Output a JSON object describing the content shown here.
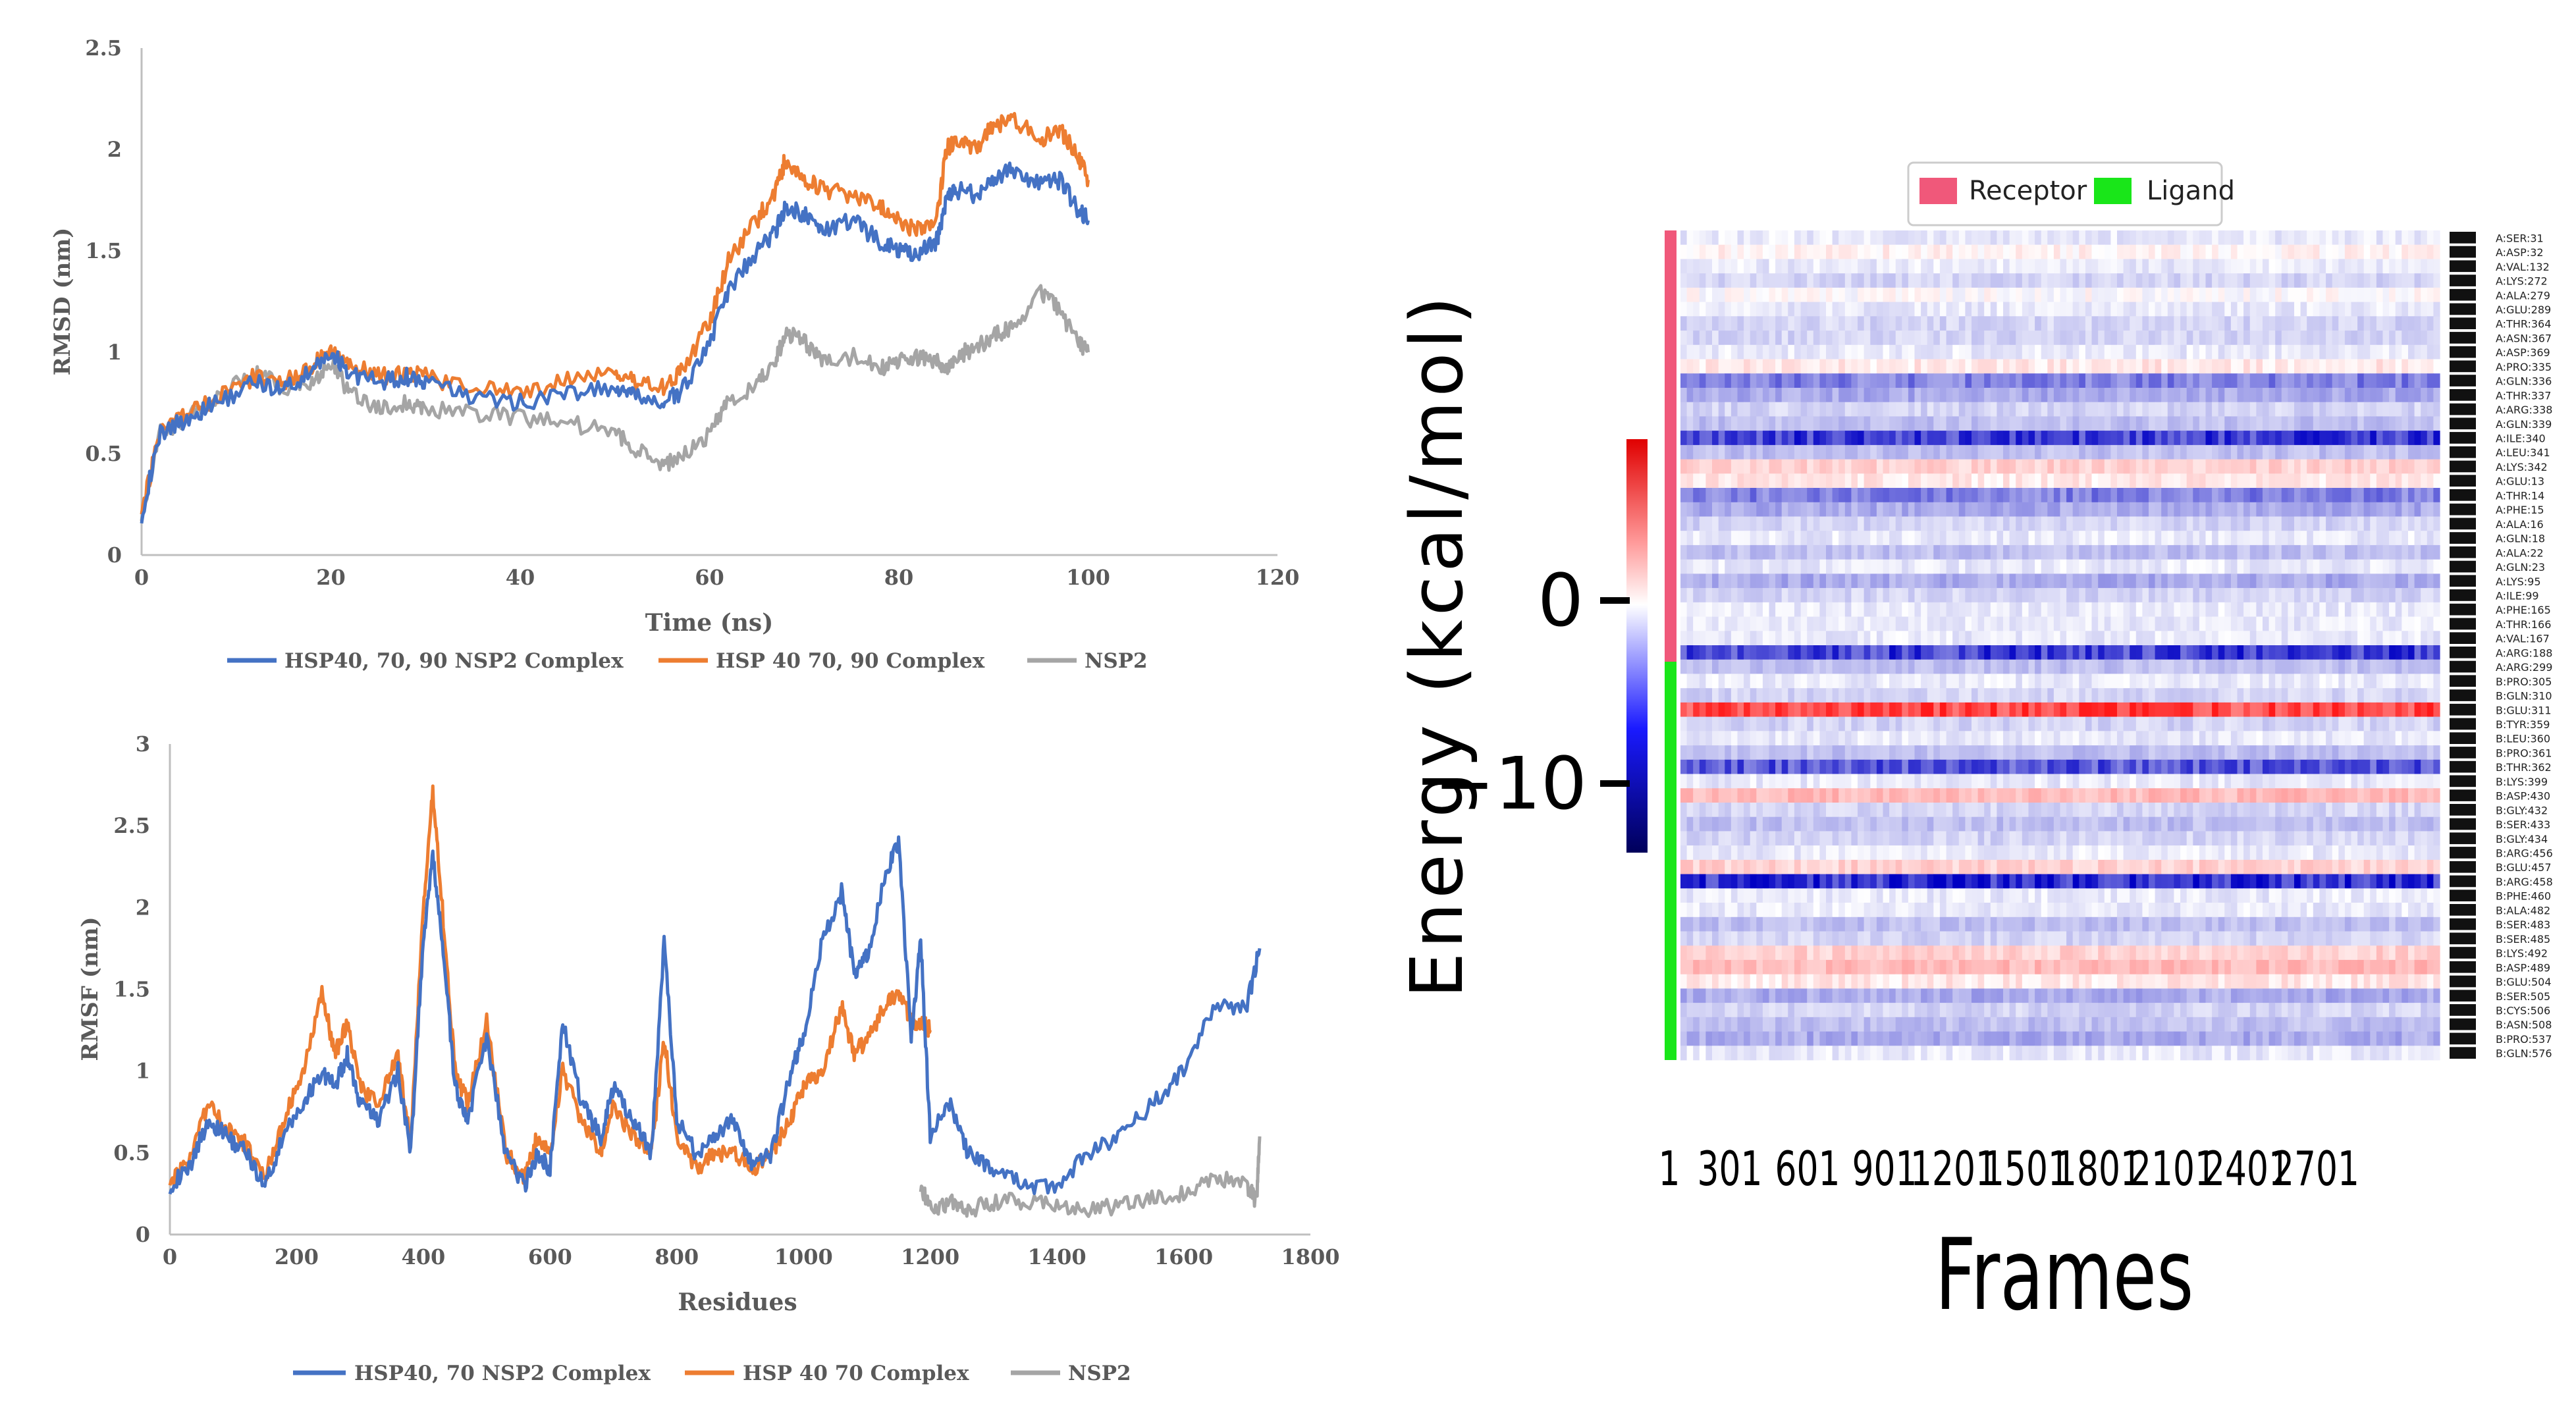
{
  "chart_data": [
    {
      "type": "line",
      "id": "rmsd",
      "title": "",
      "xlabel": "Time (ns)",
      "ylabel": "RMSD (nm)",
      "xlim": [
        0,
        120
      ],
      "ylim": [
        0,
        2.5
      ],
      "xticks": [
        "0",
        "20",
        "40",
        "60",
        "80",
        "100",
        "120"
      ],
      "yticks": [
        "0",
        "0.5",
        "1",
        "1.5",
        "2",
        "2.5"
      ],
      "series": [
        {
          "name": "HSP40, 70, 90 NSP2 Complex",
          "color": "#4472C4",
          "x": [
            0,
            2,
            5,
            8,
            12,
            15,
            18,
            20,
            22,
            25,
            28,
            30,
            35,
            40,
            45,
            50,
            52,
            55,
            57,
            60,
            62,
            65,
            67,
            68,
            70,
            72,
            75,
            78,
            80,
            82,
            84,
            85,
            86,
            88,
            90,
            92,
            95,
            97,
            99,
            100
          ],
          "y": [
            0.2,
            0.6,
            0.68,
            0.75,
            0.85,
            0.82,
            0.9,
            1.0,
            0.9,
            0.85,
            0.88,
            0.85,
            0.78,
            0.75,
            0.8,
            0.82,
            0.78,
            0.75,
            0.8,
            1.05,
            1.3,
            1.5,
            1.6,
            1.72,
            1.68,
            1.6,
            1.65,
            1.55,
            1.5,
            1.48,
            1.55,
            1.75,
            1.8,
            1.78,
            1.85,
            1.9,
            1.82,
            1.85,
            1.7,
            1.65
          ]
        },
        {
          "name": "HSP 40 70, 90 Complex",
          "color": "#ED7D31",
          "x": [
            0,
            2,
            5,
            8,
            12,
            15,
            18,
            20,
            22,
            25,
            28,
            30,
            35,
            40,
            45,
            50,
            52,
            55,
            57,
            60,
            62,
            65,
            67,
            68,
            70,
            72,
            75,
            78,
            80,
            82,
            84,
            85,
            86,
            88,
            90,
            92,
            95,
            97,
            99,
            100
          ],
          "y": [
            0.2,
            0.62,
            0.7,
            0.78,
            0.88,
            0.85,
            0.93,
            1.02,
            0.95,
            0.88,
            0.9,
            0.88,
            0.82,
            0.8,
            0.86,
            0.9,
            0.85,
            0.83,
            0.9,
            1.15,
            1.45,
            1.65,
            1.8,
            1.95,
            1.85,
            1.8,
            1.78,
            1.72,
            1.65,
            1.6,
            1.65,
            2.0,
            2.05,
            2.0,
            2.12,
            2.15,
            2.05,
            2.1,
            1.95,
            1.85
          ]
        },
        {
          "name": "NSP2",
          "color": "#A5A5A5",
          "x": [
            0,
            2,
            5,
            8,
            12,
            15,
            18,
            20,
            22,
            25,
            28,
            30,
            35,
            40,
            45,
            50,
            52,
            55,
            57,
            60,
            62,
            65,
            67,
            68,
            70,
            72,
            75,
            78,
            80,
            82,
            84,
            85,
            86,
            88,
            90,
            92,
            95,
            97,
            99,
            100
          ],
          "y": [
            0.2,
            0.6,
            0.68,
            0.78,
            0.9,
            0.82,
            0.85,
            0.95,
            0.8,
            0.72,
            0.75,
            0.72,
            0.7,
            0.68,
            0.65,
            0.6,
            0.52,
            0.45,
            0.48,
            0.6,
            0.75,
            0.85,
            0.95,
            1.1,
            1.05,
            0.95,
            0.98,
            0.92,
            0.95,
            0.98,
            0.95,
            0.92,
            0.98,
            1.02,
            1.08,
            1.12,
            1.3,
            1.2,
            1.05,
            1.0
          ]
        }
      ]
    },
    {
      "type": "line",
      "id": "rmsf",
      "title": "",
      "xlabel": "Residues",
      "ylabel": "RMSF (nm)",
      "xlim": [
        0,
        1800
      ],
      "ylim": [
        0,
        3
      ],
      "xticks": [
        "0",
        "200",
        "400",
        "600",
        "800",
        "1000",
        "1200",
        "1400",
        "1600",
        "1800"
      ],
      "yticks": [
        "0",
        "0.5",
        "1",
        "1.5",
        "2",
        "2.5",
        "3"
      ],
      "series": [
        {
          "name": "HSP40, 70 NSP2 Complex",
          "color": "#4472C4",
          "x": [
            0,
            30,
            60,
            90,
            120,
            150,
            180,
            210,
            240,
            260,
            280,
            300,
            330,
            360,
            380,
            400,
            415,
            430,
            450,
            470,
            500,
            530,
            560,
            580,
            600,
            620,
            650,
            680,
            700,
            730,
            760,
            780,
            800,
            830,
            860,
            890,
            920,
            950,
            980,
            1000,
            1030,
            1060,
            1080,
            1100,
            1130,
            1150,
            1170,
            1185,
            1200,
            1230,
            1260,
            1300,
            1350,
            1400,
            1450,
            1500,
            1550,
            1600,
            1650,
            1700,
            1720
          ],
          "y": [
            0.3,
            0.4,
            0.7,
            0.6,
            0.5,
            0.3,
            0.6,
            0.8,
            1.0,
            0.9,
            1.1,
            0.8,
            0.7,
            1.0,
            0.5,
            1.8,
            2.3,
            1.8,
            0.9,
            0.7,
            1.2,
            0.5,
            0.3,
            0.5,
            0.4,
            1.3,
            0.8,
            0.6,
            0.9,
            0.7,
            0.5,
            1.8,
            0.7,
            0.5,
            0.6,
            0.7,
            0.4,
            0.5,
            1.0,
            1.2,
            1.8,
            2.1,
            1.6,
            1.7,
            2.2,
            2.4,
            1.2,
            1.8,
            0.6,
            0.8,
            0.5,
            0.4,
            0.3,
            0.3,
            0.5,
            0.6,
            0.8,
            1.0,
            1.4,
            1.4,
            1.75
          ]
        },
        {
          "name": "HSP 40 70 Complex",
          "color": "#ED7D31",
          "x": [
            0,
            30,
            60,
            90,
            120,
            150,
            180,
            210,
            240,
            260,
            280,
            300,
            330,
            360,
            380,
            400,
            415,
            430,
            450,
            470,
            500,
            530,
            560,
            580,
            600,
            620,
            650,
            680,
            700,
            730,
            760,
            780,
            800,
            830,
            860,
            890,
            920,
            950,
            980,
            1000,
            1030,
            1060,
            1080,
            1100,
            1130,
            1150,
            1170,
            1185,
            1200
          ],
          "y": [
            0.3,
            0.45,
            0.8,
            0.65,
            0.55,
            0.35,
            0.7,
            1.0,
            1.5,
            1.1,
            1.3,
            0.9,
            0.8,
            1.1,
            0.55,
            2.0,
            2.7,
            2.0,
            1.0,
            0.8,
            1.3,
            0.5,
            0.35,
            0.6,
            0.5,
            1.0,
            0.7,
            0.5,
            0.8,
            0.6,
            0.5,
            1.2,
            0.6,
            0.4,
            0.5,
            0.5,
            0.4,
            0.5,
            0.7,
            0.9,
            1.0,
            1.4,
            1.1,
            1.2,
            1.4,
            1.5,
            1.3,
            1.3,
            1.25
          ]
        },
        {
          "name": "NSP2",
          "color": "#A5A5A5",
          "x": [
            1185,
            1200,
            1230,
            1260,
            1300,
            1350,
            1400,
            1450,
            1500,
            1550,
            1600,
            1650,
            1700,
            1715,
            1720
          ],
          "y": [
            0.3,
            0.15,
            0.2,
            0.15,
            0.2,
            0.2,
            0.18,
            0.15,
            0.18,
            0.22,
            0.25,
            0.35,
            0.3,
            0.2,
            0.6
          ]
        }
      ]
    },
    {
      "type": "heatmap",
      "id": "energy-heatmap",
      "xlabel": "Frames",
      "ylabel": "Energy (kcal/mol)",
      "xticks": [
        "1",
        "301",
        "601",
        "901",
        "1201",
        "1501",
        "1801",
        "2101",
        "2401",
        "2701"
      ],
      "colorbar_ticks": [
        "0",
        "−10"
      ],
      "legend": [
        {
          "label": "Receptor",
          "color": "#F0587A"
        },
        {
          "label": "Ligand",
          "color": "#19E619"
        }
      ],
      "rows": [
        "A:SER:31",
        "A:ASP:32",
        "A:VAL:132",
        "A:LYS:272",
        "A:ALA:279",
        "A:GLU:289",
        "A:THR:364",
        "A:ASN:367",
        "A:ASP:369",
        "A:PRO:335",
        "A:GLN:336",
        "A:THR:337",
        "A:ARG:338",
        "A:GLN:339",
        "A:ILE:340",
        "A:LEU:341",
        "A:LYS:342",
        "A:GLU:13",
        "A:THR:14",
        "A:PHE:15",
        "A:ALA:16",
        "A:GLN:18",
        "A:ALA:22",
        "A:GLN:23",
        "A:LYS:95",
        "A:ILE:99",
        "A:PHE:165",
        "A:THR:166",
        "A:VAL:167",
        "A:ARG:188",
        "A:ARG:299",
        "B:PRO:305",
        "B:GLN:310",
        "B:GLU:311",
        "B:TYR:359",
        "B:LEU:360",
        "B:PRO:361",
        "B:THR:362",
        "B:LYS:399",
        "B:ASP:430",
        "B:GLY:432",
        "B:SER:433",
        "B:GLY:434",
        "B:ARG:456",
        "B:GLU:457",
        "B:ARG:458",
        "B:PHE:460",
        "B:ALA:482",
        "B:SER:483",
        "B:SER:485",
        "B:LYS:492",
        "B:ASP:489",
        "B:GLU:504",
        "B:SER:505",
        "B:CYS:506",
        "B:ASN:508",
        "B:PRO:537",
        "B:GLN:576"
      ],
      "receptor_rows": 30,
      "row_energy": [
        -1,
        0.5,
        -1,
        -2,
        0,
        -1,
        -2,
        -2,
        -1,
        1,
        -6,
        -4,
        -2,
        -3,
        -9,
        -3,
        2,
        1,
        -6,
        -4,
        -2,
        -1,
        -3,
        -1,
        -4,
        -2,
        -1,
        -1,
        -1,
        -9,
        -3,
        -1,
        -2,
        8,
        -2,
        -1,
        -3,
        -8,
        -1,
        3,
        -2,
        -3,
        -2,
        -1,
        2,
        -10,
        -1,
        -1,
        -3,
        -2,
        2,
        3,
        1,
        -4,
        -2,
        -3,
        -4,
        -1
      ]
    }
  ],
  "legends": {
    "rmsd": [
      "HSP40, 70, 90 NSP2 Complex",
      "HSP 40 70, 90 Complex",
      "NSP2"
    ],
    "rmsf": [
      "HSP40, 70 NSP2 Complex",
      "HSP 40 70 Complex",
      "NSP2"
    ]
  }
}
